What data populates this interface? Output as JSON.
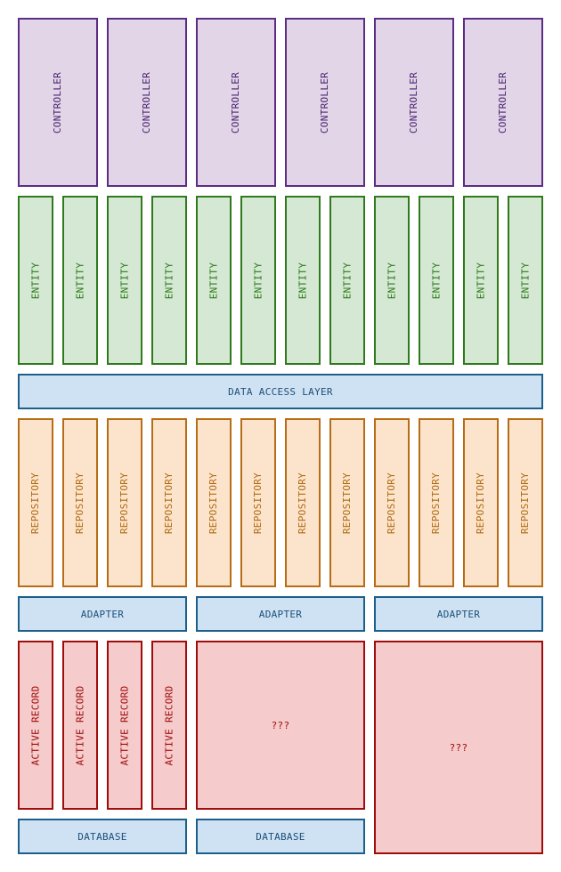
{
  "controllers": [
    "CONTROLLER",
    "CONTROLLER",
    "CONTROLLER",
    "CONTROLLER",
    "CONTROLLER",
    "CONTROLLER"
  ],
  "entities": [
    "ENTITY",
    "ENTITY",
    "ENTITY",
    "ENTITY",
    "ENTITY",
    "ENTITY",
    "ENTITY",
    "ENTITY",
    "ENTITY",
    "ENTITY",
    "ENTITY",
    "ENTITY"
  ],
  "data_access_layer": "DATA ACCESS LAYER",
  "repositories": [
    "REPOSITORY",
    "REPOSITORY",
    "REPOSITORY",
    "REPOSITORY",
    "REPOSITORY",
    "REPOSITORY",
    "REPOSITORY",
    "REPOSITORY",
    "REPOSITORY",
    "REPOSITORY",
    "REPOSITORY",
    "REPOSITORY"
  ],
  "adapters": [
    "ADAPTER",
    "ADAPTER",
    "ADAPTER"
  ],
  "active_records": [
    "ACTIVE RECORD",
    "ACTIVE RECORD",
    "ACTIVE RECORD",
    "ACTIVE RECORD"
  ],
  "unknown_store_1": "???",
  "unknown_store_2": "???",
  "databases": [
    "DATABASE",
    "DATABASE"
  ],
  "colors": {
    "controller_fill": "#e1d5e7",
    "controller_stroke": "#5c2d82",
    "entity_fill": "#d5e8d4",
    "entity_stroke": "#2f7a1c",
    "layer_fill": "#cfe2f3",
    "layer_stroke": "#1c5f8a",
    "repository_fill": "#fce4cc",
    "repository_stroke": "#b76c15",
    "storage_fill": "#f5cbcb",
    "storage_stroke": "#a00c0c"
  }
}
